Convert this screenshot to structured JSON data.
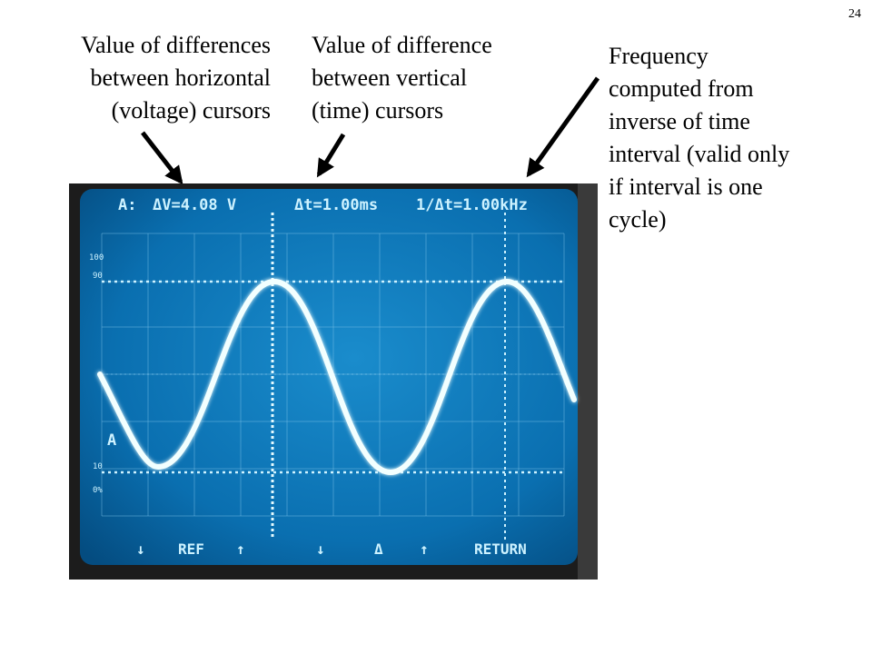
{
  "slide": {
    "number": "24"
  },
  "captions": {
    "voltage": [
      "Value of differences",
      "between horizontal",
      "(voltage) cursors"
    ],
    "time": [
      "Value of difference",
      "between vertical",
      "(time) cursors"
    ],
    "frequency": [
      "Frequency",
      "computed from",
      "inverse of time",
      "interval (valid only",
      "if interval is one",
      "cycle)"
    ]
  },
  "scope": {
    "readout": {
      "channel": "A:",
      "delta_v": "ΔV=4.08 V",
      "delta_t": "Δt=1.00ms",
      "inverse": "1/Δt=1.00kHz"
    },
    "scale_top": "100",
    "scale_90": "90",
    "channel_marker": "A",
    "scale_10": "10",
    "scale_0": "0%",
    "softkeys": {
      "down1": "↓",
      "ref": "REF",
      "up1": "↑",
      "down2": "↓",
      "delta": "Δ",
      "up2": "↑",
      "return": "RETURN"
    },
    "colors": {
      "screen": "#0a6fb0",
      "trace": "#f2ffff",
      "text": "#cdf2ff",
      "grid": "#7fc3e8",
      "bezel": "#1c1c1c"
    }
  }
}
